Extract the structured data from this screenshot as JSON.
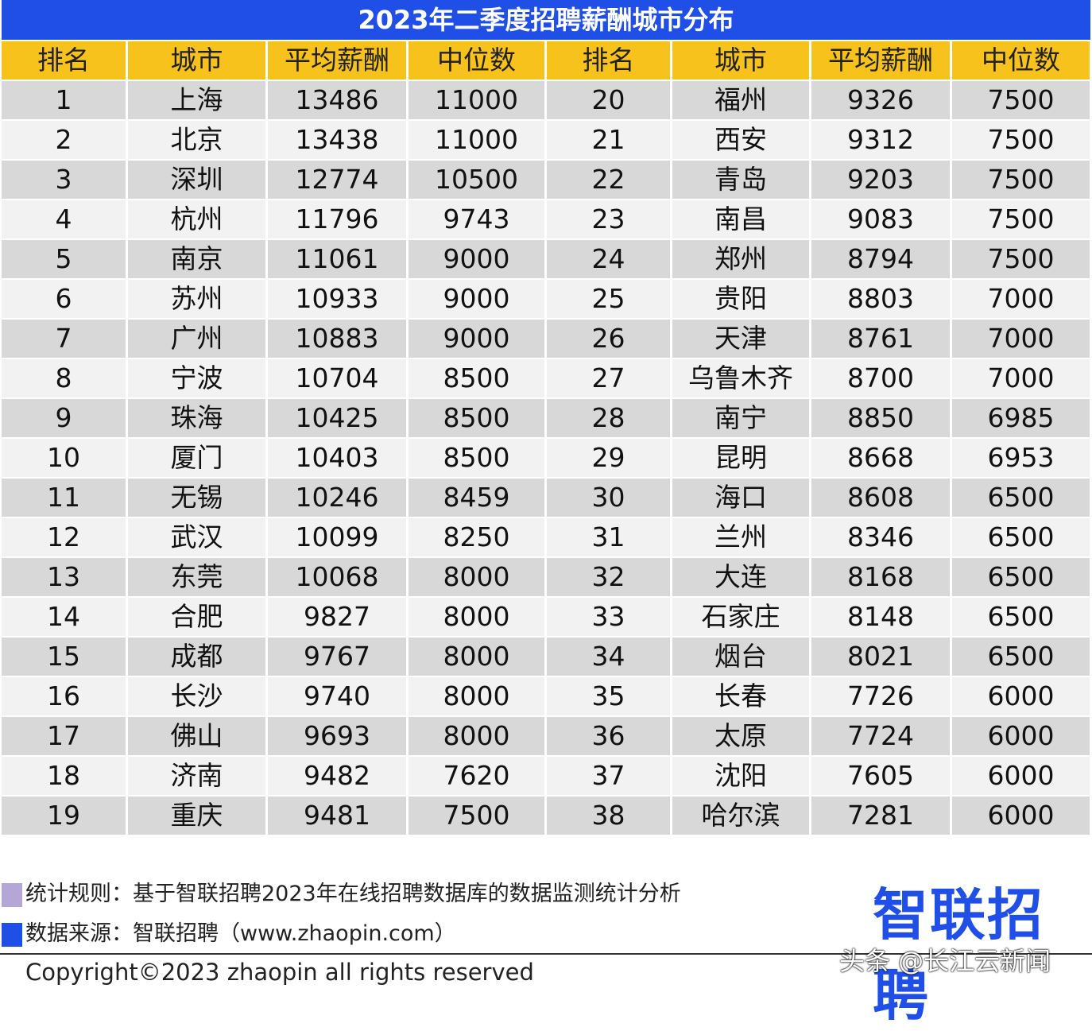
{
  "title": "2023年二季度招聘薪酬城市分布",
  "table": {
    "header": [
      "排名",
      "城市",
      "平均薪酬",
      "中位数",
      "排名",
      "城市",
      "平均薪酬",
      "中位数"
    ],
    "rows": [
      [
        1,
        "上海",
        13486,
        11000,
        20,
        "福州",
        9326,
        7500
      ],
      [
        2,
        "北京",
        13438,
        11000,
        21,
        "西安",
        9312,
        7500
      ],
      [
        3,
        "深圳",
        12774,
        10500,
        22,
        "青岛",
        9203,
        7500
      ],
      [
        4,
        "杭州",
        11796,
        9743,
        23,
        "南昌",
        9083,
        7500
      ],
      [
        5,
        "南京",
        11061,
        9000,
        24,
        "郑州",
        8794,
        7500
      ],
      [
        6,
        "苏州",
        10933,
        9000,
        25,
        "贵阳",
        8803,
        7000
      ],
      [
        7,
        "广州",
        10883,
        9000,
        26,
        "天津",
        8761,
        7000
      ],
      [
        8,
        "宁波",
        10704,
        8500,
        27,
        "乌鲁木齐",
        8700,
        7000
      ],
      [
        9,
        "珠海",
        10425,
        8500,
        28,
        "南宁",
        8850,
        6985
      ],
      [
        10,
        "厦门",
        10403,
        8500,
        29,
        "昆明",
        8668,
        6953
      ],
      [
        11,
        "无锡",
        10246,
        8459,
        30,
        "海口",
        8608,
        6500
      ],
      [
        12,
        "武汉",
        10099,
        8250,
        31,
        "兰州",
        8346,
        6500
      ],
      [
        13,
        "东莞",
        10068,
        8000,
        32,
        "大连",
        8168,
        6500
      ],
      [
        14,
        "合肥",
        9827,
        8000,
        33,
        "石家庄",
        8148,
        6500
      ],
      [
        15,
        "成都",
        9767,
        8000,
        34,
        "烟台",
        8021,
        6500
      ],
      [
        16,
        "长沙",
        9740,
        8000,
        35,
        "长春",
        7726,
        6000
      ],
      [
        17,
        "佛山",
        9693,
        8000,
        36,
        "太原",
        7724,
        6000
      ],
      [
        18,
        "济南",
        9482,
        7620,
        37,
        "沈阳",
        7605,
        6000
      ],
      [
        19,
        "重庆",
        9481,
        7500,
        38,
        "哈尔滨",
        7281,
        6000
      ]
    ]
  },
  "footer": {
    "notes": [
      "统计规则：基于智联招聘2023年在线招聘数据库的数据监测统计分析",
      "数据来源：智联招聘（www.zhaopin.com）"
    ],
    "logo": "智联招聘",
    "copyright": "Copyright©2023 zhaopin all rights reserved",
    "watermark": "头条 @长江云新闻"
  }
}
